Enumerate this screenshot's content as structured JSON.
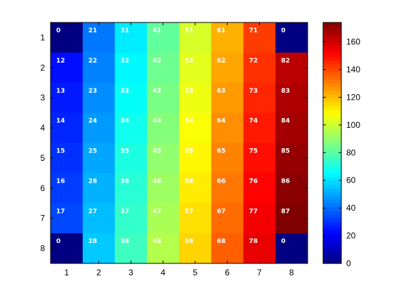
{
  "chart_data": {
    "type": "heatmap",
    "title": "",
    "xlabel": "",
    "ylabel": "",
    "x_categories": [
      "1",
      "2",
      "3",
      "4",
      "5",
      "6",
      "7",
      "8"
    ],
    "y_categories": [
      "1",
      "2",
      "3",
      "4",
      "5",
      "6",
      "7",
      "8"
    ],
    "y_axis_direction": "top-to-bottom",
    "cell_labels": [
      [
        "0",
        "21",
        "31",
        "41",
        "51",
        "61",
        "71",
        "0"
      ],
      [
        "12",
        "22",
        "32",
        "42",
        "52",
        "62",
        "72",
        "82"
      ],
      [
        "13",
        "23",
        "33",
        "43",
        "53",
        "63",
        "73",
        "83"
      ],
      [
        "14",
        "24",
        "34",
        "44",
        "54",
        "64",
        "74",
        "84"
      ],
      [
        "15",
        "25",
        "35",
        "45",
        "55",
        "65",
        "75",
        "85"
      ],
      [
        "16",
        "26",
        "36",
        "46",
        "56",
        "66",
        "76",
        "86"
      ],
      [
        "17",
        "27",
        "37",
        "47",
        "57",
        "67",
        "77",
        "87"
      ],
      [
        "0",
        "28",
        "38",
        "48",
        "58",
        "68",
        "78",
        "0"
      ]
    ],
    "values": [
      [
        0,
        42,
        62,
        82,
        102,
        122,
        142,
        0
      ],
      [
        24,
        44,
        64,
        84,
        104,
        124,
        144,
        164
      ],
      [
        26,
        46,
        66,
        86,
        106,
        126,
        146,
        166
      ],
      [
        28,
        48,
        68,
        88,
        108,
        128,
        148,
        168
      ],
      [
        30,
        50,
        70,
        90,
        110,
        130,
        150,
        170
      ],
      [
        32,
        52,
        72,
        92,
        112,
        132,
        152,
        172
      ],
      [
        34,
        54,
        74,
        94,
        114,
        134,
        154,
        174
      ],
      [
        0,
        56,
        76,
        96,
        116,
        136,
        156,
        0
      ]
    ],
    "colormap": "jet",
    "clim": [
      0,
      174
    ],
    "colorbar": {
      "ticks": [
        0,
        20,
        40,
        60,
        80,
        100,
        120,
        140,
        160
      ],
      "tick_labels": [
        "0",
        "20",
        "40",
        "60",
        "80",
        "100",
        "120",
        "140",
        "160"
      ],
      "placement": "right"
    },
    "grid": false,
    "cell_label_color": "#ffffff"
  }
}
